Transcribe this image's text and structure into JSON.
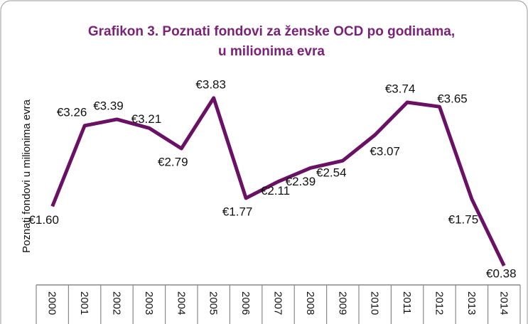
{
  "chart_data": {
    "type": "line",
    "title": [
      "Grafikon 3. Poznati fondovi za ženske OCD po godinama,",
      "u milionima evra"
    ],
    "y_label": "Poznati fondovi u milionima evra",
    "categories": [
      "2000",
      "2001",
      "2002",
      "2003",
      "2004",
      "2005",
      "2006",
      "2007",
      "2008",
      "2009",
      "2010",
      "2011",
      "2012",
      "2013",
      "2014"
    ],
    "series": [
      {
        "name": "Poznati fondovi",
        "color": "#6a1166",
        "values": [
          1.6,
          3.26,
          3.39,
          3.21,
          2.79,
          3.83,
          1.77,
          2.11,
          2.39,
          2.54,
          3.07,
          3.74,
          3.65,
          1.75,
          0.38
        ],
        "value_labels": [
          "€1.60",
          "€3.26",
          "€3.39",
          "€3.21",
          "€2.79",
          "€3.83",
          "€1.77",
          "€2.11",
          "€2.39",
          "€2.54",
          "€3.07",
          "€3.74",
          "€3.65",
          "€1.75",
          "€0.38"
        ]
      }
    ],
    "ylim": [
      0,
      4.5
    ]
  }
}
